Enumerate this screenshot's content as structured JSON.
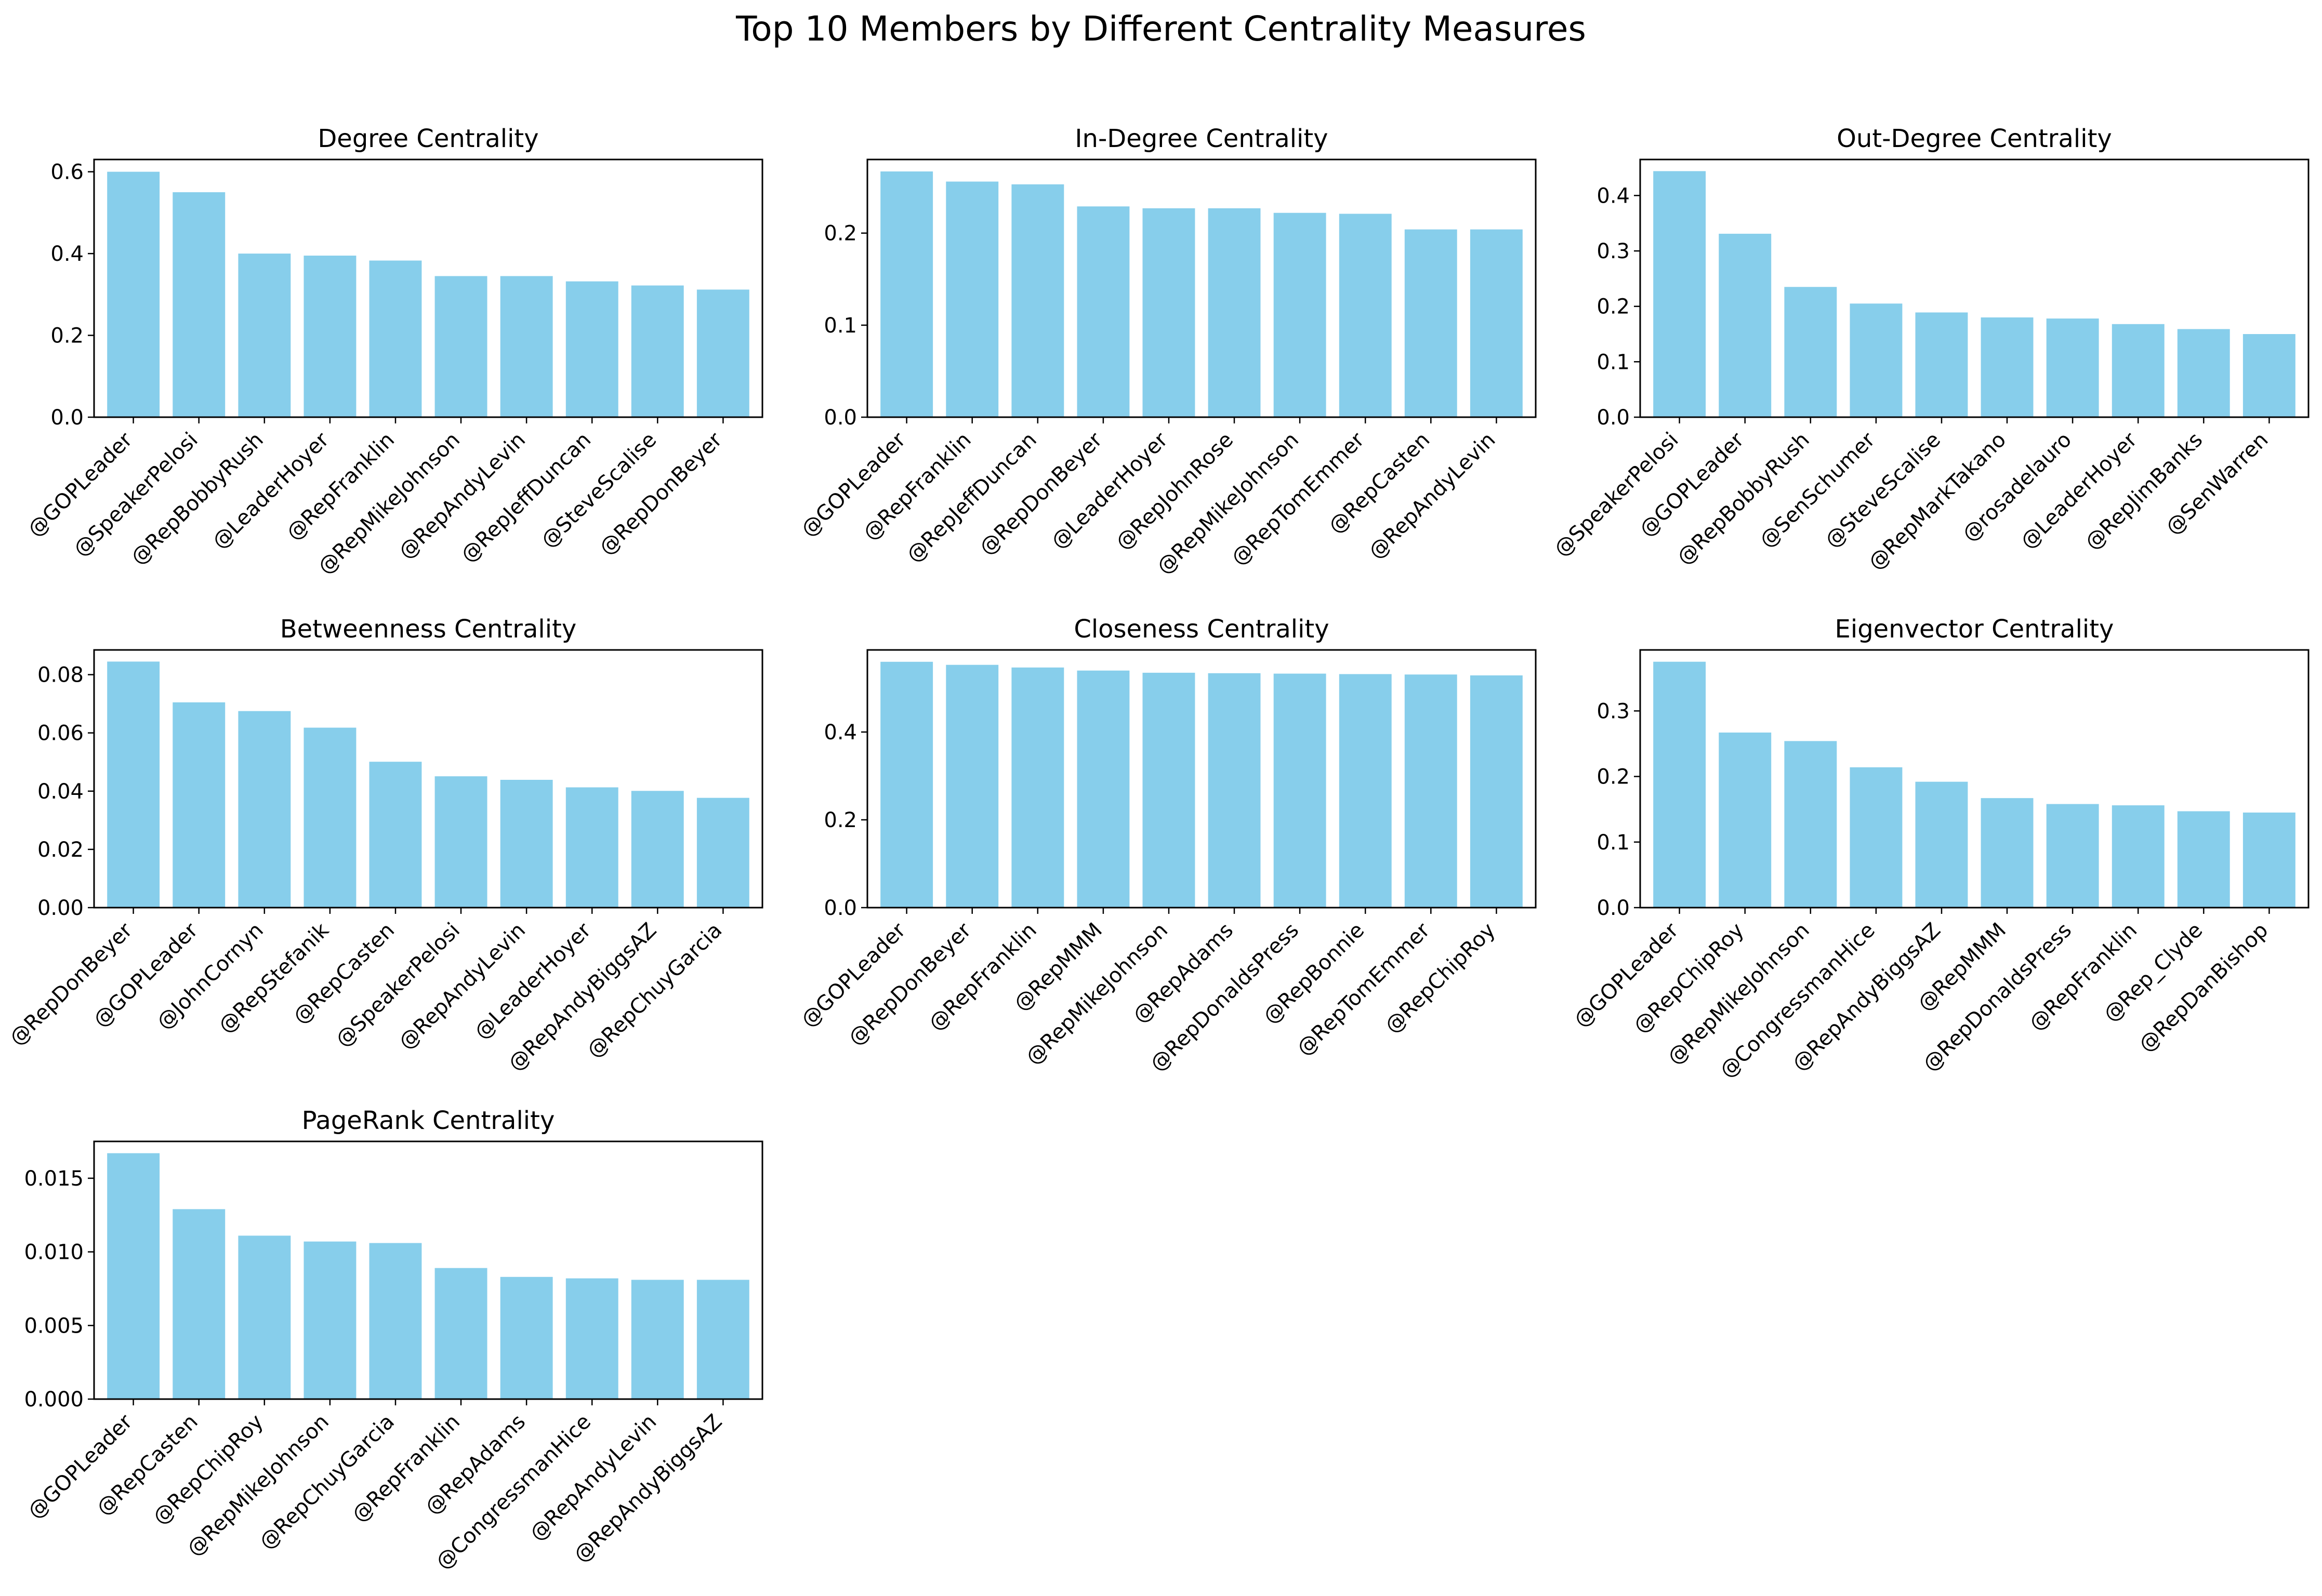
{
  "figure_title": "Top 10 Members by Different Centrality Measures",
  "colors": {
    "bar": "#87CEEB",
    "axes": "#000000",
    "background": "#ffffff"
  },
  "chart_data": [
    {
      "type": "bar",
      "title": "Degree Centrality",
      "categories": [
        "@GOPLeader",
        "@SpeakerPelosi",
        "@RepBobbyRush",
        "@LeaderHoyer",
        "@RepFranklin",
        "@RepMikeJohnson",
        "@RepAndyLevin",
        "@RepJeffDuncan",
        "@SteveScalise",
        "@RepDonBeyer"
      ],
      "values": [
        0.6,
        0.55,
        0.4,
        0.395,
        0.383,
        0.345,
        0.345,
        0.332,
        0.322,
        0.312
      ],
      "ylim": [
        0,
        0.63
      ],
      "yticks": [
        0.0,
        0.2,
        0.4,
        0.6
      ],
      "ytick_labels": [
        "0.0",
        "0.2",
        "0.4",
        "0.6"
      ]
    },
    {
      "type": "bar",
      "title": "In-Degree Centrality",
      "categories": [
        "@GOPLeader",
        "@RepFranklin",
        "@RepJeffDuncan",
        "@RepDonBeyer",
        "@LeaderHoyer",
        "@RepJohnRose",
        "@RepMikeJohnson",
        "@RepTomEmmer",
        "@RepCasten",
        "@RepAndyLevin"
      ],
      "values": [
        0.267,
        0.256,
        0.253,
        0.229,
        0.227,
        0.227,
        0.222,
        0.221,
        0.204,
        0.204
      ],
      "ylim": [
        0,
        0.28
      ],
      "yticks": [
        0.0,
        0.1,
        0.2
      ],
      "ytick_labels": [
        "0.0",
        "0.1",
        "0.2"
      ]
    },
    {
      "type": "bar",
      "title": "Out-Degree Centrality",
      "categories": [
        "@SpeakerPelosi",
        "@GOPLeader",
        "@RepBobbyRush",
        "@SenSchumer",
        "@SteveScalise",
        "@RepMarkTakano",
        "@rosadelauro",
        "@LeaderHoyer",
        "@RepJimBanks",
        "@SenWarren"
      ],
      "values": [
        0.444,
        0.331,
        0.235,
        0.205,
        0.189,
        0.18,
        0.178,
        0.168,
        0.159,
        0.15
      ],
      "ylim": [
        0,
        0.465
      ],
      "yticks": [
        0.0,
        0.1,
        0.2,
        0.3,
        0.4
      ],
      "ytick_labels": [
        "0.0",
        "0.1",
        "0.2",
        "0.3",
        "0.4"
      ]
    },
    {
      "type": "bar",
      "title": "Betweenness Centrality",
      "categories": [
        "@RepDonBeyer",
        "@GOPLeader",
        "@JohnCornyn",
        "@RepStefanik",
        "@RepCasten",
        "@SpeakerPelosi",
        "@RepAndyLevin",
        "@LeaderHoyer",
        "@RepAndyBiggsAZ",
        "@RepChuyGarcia"
      ],
      "values": [
        0.0845,
        0.0705,
        0.0675,
        0.0618,
        0.0501,
        0.0451,
        0.0439,
        0.0413,
        0.0401,
        0.0377
      ],
      "ylim": [
        0,
        0.0885
      ],
      "yticks": [
        0.0,
        0.02,
        0.04,
        0.06,
        0.08
      ],
      "ytick_labels": [
        "0.00",
        "0.02",
        "0.04",
        "0.06",
        "0.08"
      ]
    },
    {
      "type": "bar",
      "title": "Closeness Centrality",
      "categories": [
        "@GOPLeader",
        "@RepDonBeyer",
        "@RepFranklin",
        "@RepMMM",
        "@RepMikeJohnson",
        "@RepAdams",
        "@RepDonaldsPress",
        "@RepBonnie",
        "@RepTomEmmer",
        "@RepChipRoy"
      ],
      "values": [
        0.56,
        0.553,
        0.547,
        0.54,
        0.535,
        0.534,
        0.533,
        0.532,
        0.531,
        0.529
      ],
      "ylim": [
        0,
        0.587
      ],
      "yticks": [
        0.0,
        0.2,
        0.4
      ],
      "ytick_labels": [
        "0.0",
        "0.2",
        "0.4"
      ]
    },
    {
      "type": "bar",
      "title": "Eigenvector Centrality",
      "categories": [
        "@GOPLeader",
        "@RepChipRoy",
        "@RepMikeJohnson",
        "@CongressmanHice",
        "@RepAndyBiggsAZ",
        "@RepMMM",
        "@RepDonaldsPress",
        "@RepFranklin",
        "@Rep_Clyde",
        "@RepDanBishop"
      ],
      "values": [
        0.375,
        0.267,
        0.254,
        0.214,
        0.192,
        0.167,
        0.158,
        0.156,
        0.147,
        0.145
      ],
      "ylim": [
        0,
        0.393
      ],
      "yticks": [
        0.0,
        0.1,
        0.2,
        0.3
      ],
      "ytick_labels": [
        "0.0",
        "0.1",
        "0.2",
        "0.3"
      ]
    },
    {
      "type": "bar",
      "title": "PageRank Centrality",
      "categories": [
        "@GOPLeader",
        "@RepCasten",
        "@RepChipRoy",
        "@RepMikeJohnson",
        "@RepChuyGarcia",
        "@RepFranklin",
        "@RepAdams",
        "@CongressmanHice",
        "@RepAndyLevin",
        "@RepAndyBiggsAZ"
      ],
      "values": [
        0.0167,
        0.0129,
        0.0111,
        0.0107,
        0.0106,
        0.0089,
        0.0083,
        0.0082,
        0.0081,
        0.0081
      ],
      "ylim": [
        0,
        0.0175
      ],
      "yticks": [
        0.0,
        0.005,
        0.01,
        0.015
      ],
      "ytick_labels": [
        "0.000",
        "0.005",
        "0.010",
        "0.015"
      ]
    }
  ]
}
